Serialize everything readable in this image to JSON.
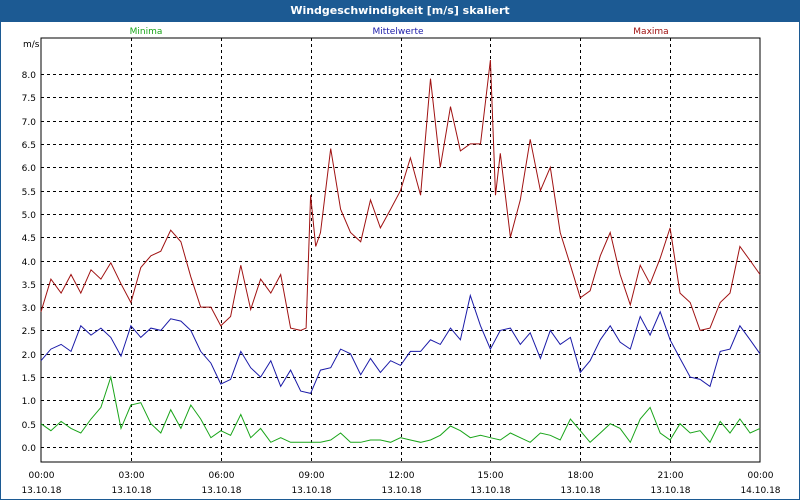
{
  "window": {
    "title": "Windgeschwindigkeit [m/s] skaliert"
  },
  "colors": {
    "titlebar": "#1c5a93",
    "min": "#1aa51a",
    "mean": "#1a1aa8",
    "max": "#a01212"
  },
  "chart_data": {
    "type": "line",
    "ylabel": "m/s",
    "ylim": [
      -0.15,
      8.5
    ],
    "yticks": [
      "0.0",
      "0.5",
      "1.0",
      "1.5",
      "2.0",
      "2.5",
      "3.0",
      "3.5",
      "4.0",
      "4.5",
      "5.0",
      "5.5",
      "6.0",
      "6.5",
      "7.0",
      "7.5",
      "8.0"
    ],
    "xlim": [
      0,
      24
    ],
    "xticks": [
      {
        "time": "00:00",
        "date": "13.10.18"
      },
      {
        "time": "03:00",
        "date": "13.10.18"
      },
      {
        "time": "06:00",
        "date": "13.10.18"
      },
      {
        "time": "09:00",
        "date": "13.10.18"
      },
      {
        "time": "12:00",
        "date": "13.10.18"
      },
      {
        "time": "15:00",
        "date": "13.10.18"
      },
      {
        "time": "18:00",
        "date": "13.10.18"
      },
      {
        "time": "21:00",
        "date": "13.10.18"
      },
      {
        "time": "00:00",
        "date": "14.10.18"
      }
    ],
    "grid": true,
    "series": [
      {
        "name": "Minima",
        "color": "#1aa51a",
        "hours": [
          0,
          0.33,
          0.67,
          1,
          1.33,
          1.67,
          2,
          2.33,
          2.67,
          3,
          3.33,
          3.67,
          4,
          4.33,
          4.67,
          5,
          5.33,
          5.67,
          6,
          6.33,
          6.67,
          7,
          7.33,
          7.67,
          8,
          8.33,
          8.67,
          9,
          9.33,
          9.67,
          10,
          10.33,
          10.67,
          11,
          11.33,
          11.67,
          12,
          12.33,
          12.67,
          13,
          13.33,
          13.67,
          14,
          14.33,
          14.67,
          15,
          15.33,
          15.67,
          16,
          16.33,
          16.67,
          17,
          17.33,
          17.67,
          18,
          18.33,
          18.67,
          19,
          19.33,
          19.67,
          20,
          20.33,
          20.67,
          21,
          21.33,
          21.67,
          22,
          22.33,
          22.67,
          23,
          23.33,
          23.67,
          24
        ],
        "values": [
          0.5,
          0.35,
          0.55,
          0.4,
          0.3,
          0.6,
          0.85,
          1.5,
          0.4,
          0.9,
          0.95,
          0.5,
          0.3,
          0.8,
          0.4,
          0.9,
          0.6,
          0.2,
          0.35,
          0.25,
          0.7,
          0.2,
          0.4,
          0.1,
          0.2,
          0.1,
          0.1,
          0.1,
          0.1,
          0.15,
          0.3,
          0.1,
          0.1,
          0.15,
          0.15,
          0.1,
          0.2,
          0.15,
          0.1,
          0.15,
          0.25,
          0.45,
          0.35,
          0.2,
          0.25,
          0.2,
          0.15,
          0.3,
          0.2,
          0.1,
          0.3,
          0.25,
          0.15,
          0.6,
          0.35,
          0.1,
          0.3,
          0.5,
          0.4,
          0.1,
          0.6,
          0.85,
          0.3,
          0.15,
          0.5,
          0.3,
          0.35,
          0.1,
          0.55,
          0.3,
          0.6,
          0.3,
          0.4
        ]
      },
      {
        "name": "Mittelwerte",
        "color": "#1a1aa8",
        "hours": [
          0,
          0.33,
          0.67,
          1,
          1.33,
          1.67,
          2,
          2.33,
          2.67,
          3,
          3.33,
          3.67,
          4,
          4.33,
          4.67,
          5,
          5.33,
          5.67,
          6,
          6.33,
          6.67,
          7,
          7.33,
          7.67,
          8,
          8.33,
          8.67,
          9,
          9.33,
          9.67,
          10,
          10.33,
          10.67,
          11,
          11.33,
          11.67,
          12,
          12.33,
          12.67,
          13,
          13.33,
          13.67,
          14,
          14.33,
          14.67,
          15,
          15.33,
          15.67,
          16,
          16.33,
          16.67,
          17,
          17.33,
          17.67,
          18,
          18.33,
          18.67,
          19,
          19.33,
          19.67,
          20,
          20.33,
          20.67,
          21,
          21.33,
          21.67,
          22,
          22.33,
          22.67,
          23,
          23.33,
          23.67,
          24
        ],
        "values": [
          1.85,
          2.1,
          2.2,
          2.05,
          2.6,
          2.4,
          2.55,
          2.35,
          1.95,
          2.6,
          2.35,
          2.55,
          2.5,
          2.75,
          2.7,
          2.5,
          2.05,
          1.8,
          1.35,
          1.45,
          2.05,
          1.7,
          1.5,
          1.85,
          1.3,
          1.65,
          1.2,
          1.15,
          1.65,
          1.7,
          2.1,
          2.0,
          1.55,
          1.9,
          1.6,
          1.85,
          1.75,
          2.05,
          2.05,
          2.3,
          2.2,
          2.55,
          2.3,
          3.25,
          2.6,
          2.1,
          2.5,
          2.55,
          2.2,
          2.45,
          1.9,
          2.5,
          2.2,
          2.35,
          1.6,
          1.85,
          2.3,
          2.6,
          2.25,
          2.1,
          2.8,
          2.4,
          2.9,
          2.3,
          1.9,
          1.5,
          1.45,
          1.3,
          2.05,
          2.1,
          2.6,
          2.3,
          2.0
        ]
      },
      {
        "name": "Maxima",
        "color": "#a01212",
        "hours": [
          0,
          0.33,
          0.67,
          1,
          1.33,
          1.67,
          2,
          2.33,
          2.67,
          3,
          3.33,
          3.67,
          4,
          4.33,
          4.67,
          5,
          5.33,
          5.67,
          6,
          6.33,
          6.67,
          7,
          7.33,
          7.67,
          8,
          8.33,
          8.67,
          8.85,
          9,
          9.17,
          9.33,
          9.67,
          10,
          10.33,
          10.67,
          11,
          11.33,
          11.67,
          12,
          12.33,
          12.67,
          13,
          13.33,
          13.67,
          14,
          14.33,
          14.67,
          15,
          15.17,
          15.33,
          15.67,
          16,
          16.33,
          16.67,
          17,
          17.33,
          17.67,
          18,
          18.33,
          18.67,
          19,
          19.33,
          19.67,
          20,
          20.33,
          20.67,
          21,
          21.33,
          21.67,
          22,
          22.33,
          22.67,
          23,
          23.33,
          23.67,
          24
        ],
        "values": [
          2.9,
          3.6,
          3.3,
          3.7,
          3.3,
          3.8,
          3.6,
          3.95,
          3.5,
          3.1,
          3.85,
          4.1,
          4.2,
          4.65,
          4.4,
          3.65,
          3.0,
          3.0,
          2.6,
          2.8,
          3.9,
          2.95,
          3.6,
          3.3,
          3.7,
          2.55,
          2.5,
          2.55,
          5.4,
          4.3,
          4.6,
          6.4,
          5.1,
          4.6,
          4.4,
          5.3,
          4.7,
          5.1,
          5.5,
          6.2,
          5.4,
          7.9,
          6.0,
          7.3,
          6.35,
          6.5,
          6.5,
          8.3,
          5.4,
          6.3,
          4.5,
          5.3,
          6.6,
          5.5,
          6.0,
          4.6,
          3.9,
          3.2,
          3.35,
          4.1,
          4.6,
          3.7,
          3.05,
          3.9,
          3.5,
          4.05,
          4.7,
          3.3,
          3.1,
          2.5,
          2.55,
          3.1,
          3.3,
          4.3,
          4.0,
          3.7
        ]
      }
    ]
  }
}
